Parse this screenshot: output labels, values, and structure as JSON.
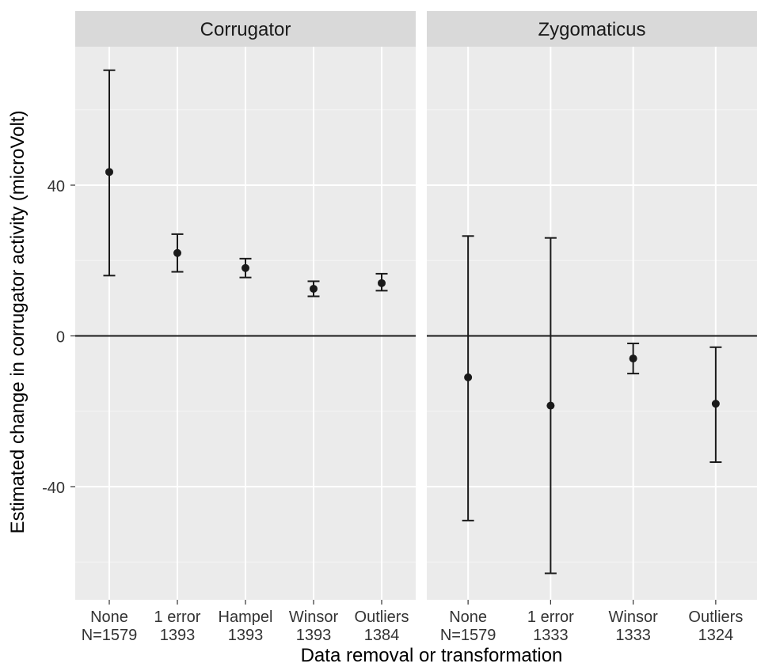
{
  "chart_data": {
    "type": "errorbar",
    "ylabel": "Estimated change in corrugator activity (microVolt)",
    "xlabel": "Data removal or transformation",
    "ylim": [
      -70,
      80
    ],
    "y_ticks": [
      -40,
      0,
      40
    ],
    "y_tick_labels": [
      "-40",
      "0",
      "40"
    ],
    "grid": true,
    "reference_line_y": 0,
    "panels": [
      {
        "title": "Corrugator",
        "categories": [
          {
            "line1": "None",
            "line2": "N=1579"
          },
          {
            "line1": "1 error",
            "line2": "1393"
          },
          {
            "line1": "Hampel",
            "line2": "1393"
          },
          {
            "line1": "Winsor",
            "line2": "1393"
          },
          {
            "line1": "Outliers",
            "line2": "1384"
          }
        ],
        "estimates": [
          43.5,
          22.0,
          18.0,
          12.5,
          14.0
        ],
        "lower": [
          16.0,
          17.0,
          15.5,
          10.5,
          12.0
        ],
        "upper": [
          70.5,
          27.0,
          20.5,
          14.5,
          16.5
        ]
      },
      {
        "title": "Zygomaticus",
        "categories": [
          {
            "line1": "None",
            "line2": "N=1579"
          },
          {
            "line1": "1 error",
            "line2": "1333"
          },
          {
            "line1": "Winsor",
            "line2": "1333"
          },
          {
            "line1": "Outliers",
            "line2": "1324"
          }
        ],
        "estimates": [
          -11.0,
          -18.5,
          -6.0,
          -18.0
        ],
        "lower": [
          -49.0,
          -63.0,
          -10.0,
          -33.5
        ],
        "upper": [
          26.5,
          26.0,
          -2.0,
          -3.0
        ]
      }
    ]
  }
}
